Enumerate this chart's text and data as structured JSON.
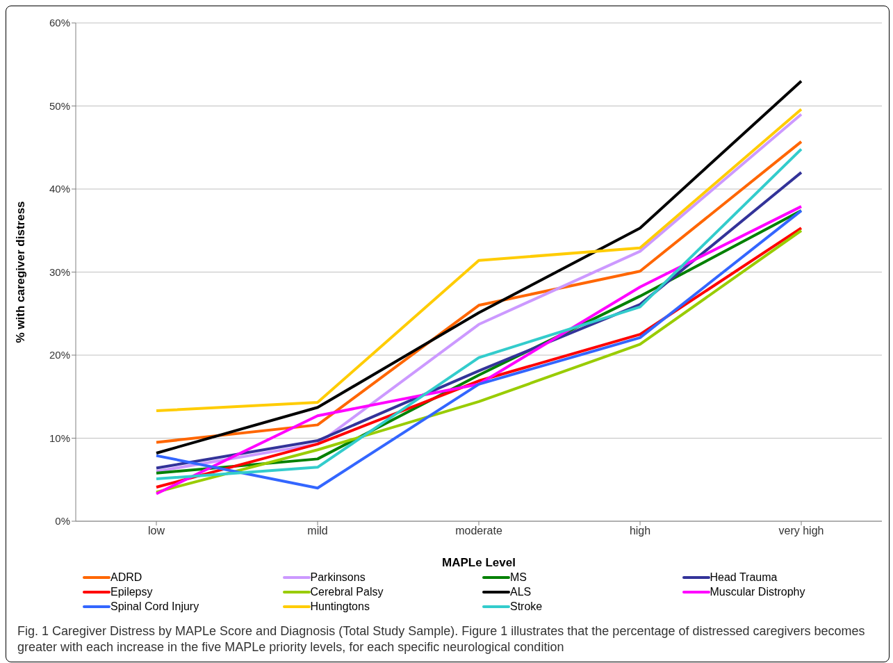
{
  "chart_data": {
    "type": "line",
    "xlabel": "MAPLe Level",
    "ylabel": "% with caregiver distress",
    "categories": [
      "low",
      "mild",
      "moderate",
      "high",
      "very high"
    ],
    "ylim": [
      0,
      60
    ],
    "yticks": [
      {
        "value": 0,
        "label": "0%"
      },
      {
        "value": 10,
        "label": "10%"
      },
      {
        "value": 20,
        "label": "20%"
      },
      {
        "value": 30,
        "label": "30%"
      },
      {
        "value": 40,
        "label": "40%"
      },
      {
        "value": 50,
        "label": "50%"
      },
      {
        "value": 60,
        "label": "60%"
      }
    ],
    "grid": "y",
    "legend": "bottom",
    "marker": "none",
    "line_style": "solid",
    "series": [
      {
        "name": "ADRD",
        "color": "#ff6600",
        "values": [
          9.5,
          11.6,
          26.0,
          30.1,
          45.7
        ]
      },
      {
        "name": "Parkinsons",
        "color": "#cc99ff",
        "values": [
          6.0,
          9.3,
          23.7,
          32.5,
          49.0
        ]
      },
      {
        "name": "MS",
        "color": "#008000",
        "values": [
          5.8,
          7.5,
          17.6,
          27.1,
          37.4
        ]
      },
      {
        "name": "Head Trauma",
        "color": "#333399",
        "values": [
          6.4,
          9.7,
          18.1,
          26.1,
          42.0
        ]
      },
      {
        "name": "Epilepsy",
        "color": "#ff0000",
        "values": [
          4.1,
          9.3,
          16.9,
          22.5,
          35.3
        ]
      },
      {
        "name": "Cerebral Palsy",
        "color": "#99cc00",
        "values": [
          3.5,
          8.6,
          14.4,
          21.3,
          35.0
        ]
      },
      {
        "name": "ALS",
        "color": "#000000",
        "values": [
          8.2,
          13.7,
          25.1,
          35.3,
          53.0
        ]
      },
      {
        "name": "Muscular Distrophy",
        "color": "#ff00ff",
        "values": [
          3.3,
          12.7,
          16.5,
          28.2,
          37.9
        ]
      },
      {
        "name": "Spinal Cord Injury",
        "color": "#3366ff",
        "values": [
          7.9,
          4.0,
          16.5,
          22.1,
          37.4
        ]
      },
      {
        "name": "Huntingtons",
        "color": "#ffcc00",
        "values": [
          13.3,
          14.3,
          31.4,
          32.9,
          49.6
        ]
      },
      {
        "name": "Stroke",
        "color": "#33cccc",
        "values": [
          5.1,
          6.5,
          19.7,
          25.8,
          44.8
        ]
      }
    ],
    "annotations": [
      "Fig. 1 Caregiver Distress by MAPLe Score and Diagnosis (Total Study Sample). Figure 1 illustrates that the percentage of distressed caregivers becomes greater with each increase in the five MAPLe priority levels, for each specific neurological condition"
    ]
  }
}
